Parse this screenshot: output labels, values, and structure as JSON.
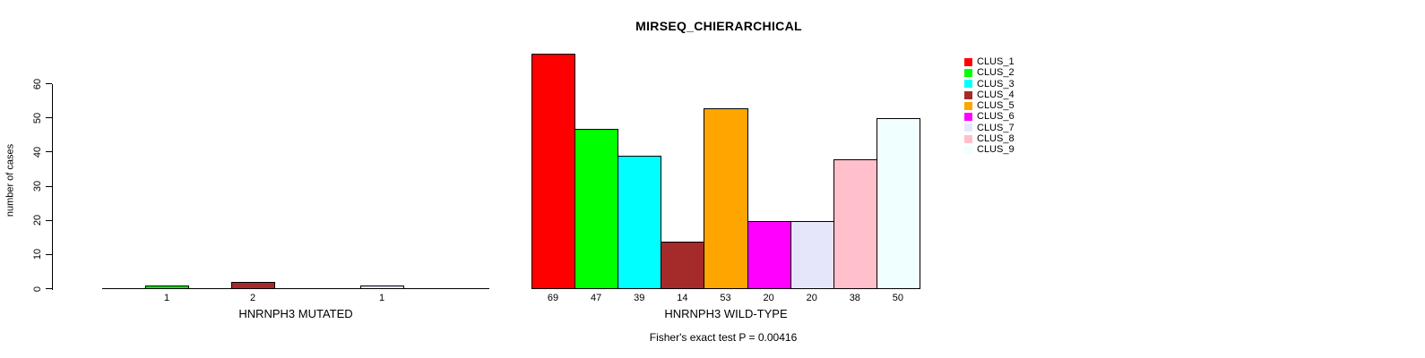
{
  "chart_data": {
    "type": "bar",
    "title": "MIRSEQ_CHIERARCHICAL",
    "ylabel": "number of cases",
    "xlabel": "",
    "ylim": [
      0,
      60
    ],
    "yticks": [
      0,
      10,
      20,
      30,
      40,
      50,
      60
    ],
    "grid": false,
    "legend_position": "right",
    "background_color": "#ffffff",
    "axis_color": "#000000",
    "bar_border_color": "#000000",
    "clusters": [
      {
        "name": "CLUS_1",
        "color": "#FF0000"
      },
      {
        "name": "CLUS_2",
        "color": "#00FF00"
      },
      {
        "name": "CLUS_3",
        "color": "#00FFFF"
      },
      {
        "name": "CLUS_4",
        "color": "#A52A2A"
      },
      {
        "name": "CLUS_5",
        "color": "#FFA500"
      },
      {
        "name": "CLUS_6",
        "color": "#FF00FF"
      },
      {
        "name": "CLUS_7",
        "color": "#E6E6FA"
      },
      {
        "name": "CLUS_8",
        "color": "#FFC0CB"
      },
      {
        "name": "CLUS_9",
        "color": "#F0FFFF"
      }
    ],
    "groups": [
      {
        "label": "HNRNPH3 MUTATED",
        "values": [
          0,
          1,
          0,
          2,
          0,
          0,
          1,
          0,
          0
        ]
      },
      {
        "label": "HNRNPH3 WILD-TYPE",
        "values": [
          69,
          47,
          39,
          14,
          53,
          20,
          20,
          38,
          50
        ]
      }
    ],
    "annotation": "Fisher's exact test P = 0.00416"
  }
}
